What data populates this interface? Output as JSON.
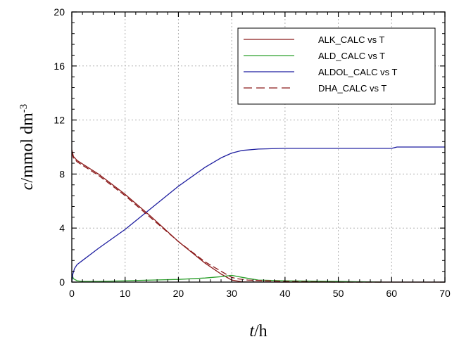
{
  "chart_data": {
    "type": "line",
    "xlim": [
      0,
      70
    ],
    "ylim": [
      0,
      20
    ],
    "xticks": [
      0,
      10,
      20,
      30,
      40,
      50,
      60,
      70
    ],
    "yticks": [
      0,
      4,
      8,
      12,
      16,
      20
    ],
    "xlabel_italic": "t",
    "xlabel_unit": "/h",
    "ylabel_italic": "c",
    "ylabel_unit": "/mmol dm",
    "ylabel_exp": "-3",
    "grid": true,
    "legend_position": "top-right",
    "series": [
      {
        "name": "ALK_CALC vs T",
        "color": "#8b1a1a",
        "dash": "solid",
        "x": [
          0,
          0.3,
          1,
          3,
          5,
          10,
          15,
          20,
          25,
          28,
          30,
          32,
          40,
          50,
          60,
          70
        ],
        "y": [
          9.8,
          9.3,
          9.0,
          8.5,
          8.0,
          6.5,
          4.8,
          3.0,
          1.4,
          0.6,
          0.15,
          0.02,
          0.0,
          0.0,
          0.0,
          0.0
        ]
      },
      {
        "name": "ALD_CALC vs T",
        "color": "#2ca02c",
        "dash": "solid",
        "x": [
          0,
          0.3,
          1,
          2,
          5,
          10,
          15,
          20,
          25,
          28,
          30,
          32,
          35,
          40,
          50,
          58
        ],
        "y": [
          0.6,
          0.25,
          0.1,
          0.05,
          0.05,
          0.1,
          0.15,
          0.2,
          0.3,
          0.4,
          0.5,
          0.35,
          0.15,
          0.1,
          0.05,
          0.0
        ]
      },
      {
        "name": "ALDOL_CALC vs T",
        "color": "#1f1fa0",
        "dash": "solid",
        "x": [
          0,
          0.2,
          0.5,
          1,
          2,
          5,
          10,
          15,
          20,
          25,
          28,
          30,
          32,
          35,
          40,
          50,
          60,
          61,
          70
        ],
        "y": [
          0,
          0.6,
          1.0,
          1.3,
          1.6,
          2.5,
          3.9,
          5.5,
          7.1,
          8.5,
          9.2,
          9.55,
          9.75,
          9.85,
          9.9,
          9.9,
          9.9,
          10.0,
          10.0
        ]
      },
      {
        "name": "DHA_CALC vs T",
        "color": "#8b1a1a",
        "dash": "dashed",
        "x": [
          0,
          0.3,
          1,
          3,
          5,
          10,
          15,
          20,
          25,
          28,
          30,
          31,
          33,
          40,
          50,
          58
        ],
        "y": [
          9.6,
          9.2,
          8.9,
          8.4,
          7.9,
          6.4,
          4.7,
          3.0,
          1.5,
          0.8,
          0.35,
          0.25,
          0.15,
          0.05,
          0.0,
          0.0
        ]
      }
    ]
  }
}
